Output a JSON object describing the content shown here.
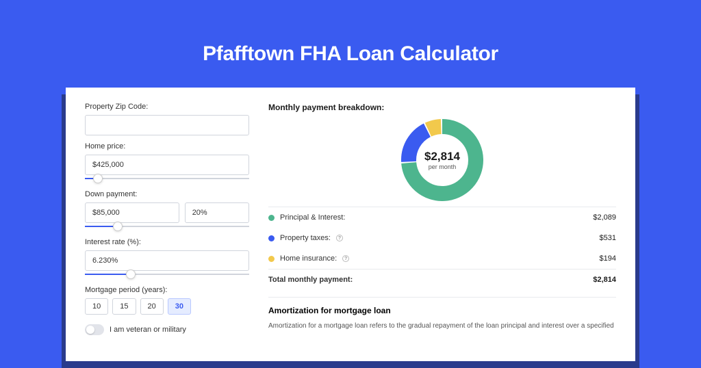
{
  "title": "Pfafftown FHA Loan Calculator",
  "colors": {
    "page_bg": "#3a5bf0",
    "card_shadow": "#2a3b8c",
    "card_bg": "#ffffff",
    "accent": "#3a5bf0",
    "slider_track": "#d0d4dc"
  },
  "form": {
    "zip": {
      "label": "Property Zip Code:",
      "value": ""
    },
    "home_price": {
      "label": "Home price:",
      "value": "$425,000",
      "slider_pct": 8
    },
    "down_payment": {
      "label": "Down payment:",
      "amount": "$85,000",
      "percent": "20%",
      "slider_pct": 20
    },
    "interest": {
      "label": "Interest rate (%):",
      "value": "6.230%",
      "slider_pct": 28
    },
    "period": {
      "label": "Mortgage period (years):",
      "options": [
        "10",
        "15",
        "20",
        "30"
      ],
      "selected": "30"
    },
    "veteran": {
      "label": "I am veteran or military",
      "checked": false
    }
  },
  "breakdown": {
    "title": "Monthly payment breakdown:",
    "donut": {
      "total_label": "$2,814",
      "sub_label": "per month",
      "radius": 60,
      "thickness": 22,
      "segments": [
        {
          "name": "principal_interest",
          "value": 2089,
          "color": "#4db58e"
        },
        {
          "name": "property_taxes",
          "value": 531,
          "color": "#3a5bf0"
        },
        {
          "name": "home_insurance",
          "value": 194,
          "color": "#f2c94c"
        }
      ]
    },
    "rows": [
      {
        "label": "Principal & Interest:",
        "value": "$2,089",
        "color": "#4db58e",
        "info": false
      },
      {
        "label": "Property taxes:",
        "value": "$531",
        "color": "#3a5bf0",
        "info": true
      },
      {
        "label": "Home insurance:",
        "value": "$194",
        "color": "#f2c94c",
        "info": true
      }
    ],
    "total": {
      "label": "Total monthly payment:",
      "value": "$2,814"
    }
  },
  "amortization": {
    "title": "Amortization for mortgage loan",
    "text": "Amortization for a mortgage loan refers to the gradual repayment of the loan principal and interest over a specified"
  }
}
